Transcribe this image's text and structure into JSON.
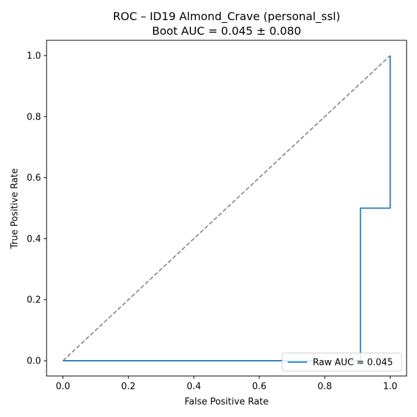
{
  "chart_data": {
    "type": "line",
    "title": "ROC – ID19 Almond_Crave (personal_ssl)",
    "subtitle": "Boot AUC = 0.045 ± 0.080",
    "xlabel": "False Positive Rate",
    "ylabel": "True Positive Rate",
    "xlim": [
      -0.05,
      1.05
    ],
    "ylim": [
      -0.05,
      1.05
    ],
    "x_ticks": [
      0.0,
      0.2,
      0.4,
      0.6,
      0.8,
      1.0
    ],
    "x_tick_labels": [
      "0.0",
      "0.2",
      "0.4",
      "0.6",
      "0.8",
      "1.0"
    ],
    "y_ticks": [
      0.0,
      0.2,
      0.4,
      0.6,
      0.8,
      1.0
    ],
    "y_tick_labels": [
      "0.0",
      "0.2",
      "0.4",
      "0.6",
      "0.8",
      "1.0"
    ],
    "grid": false,
    "legend_position": "lower-right",
    "series": [
      {
        "name": "Raw AUC = 0.045",
        "color": "#1f77b4",
        "style": "solid",
        "x": [
          0.0,
          0.0,
          0.909,
          0.909,
          1.0,
          1.0
        ],
        "y": [
          0.0,
          0.0,
          0.0,
          0.5,
          0.5,
          1.0
        ]
      }
    ],
    "reference_line": {
      "color": "#808080",
      "style": "dashed",
      "x": [
        0.0,
        1.0
      ],
      "y": [
        0.0,
        1.0
      ]
    }
  }
}
